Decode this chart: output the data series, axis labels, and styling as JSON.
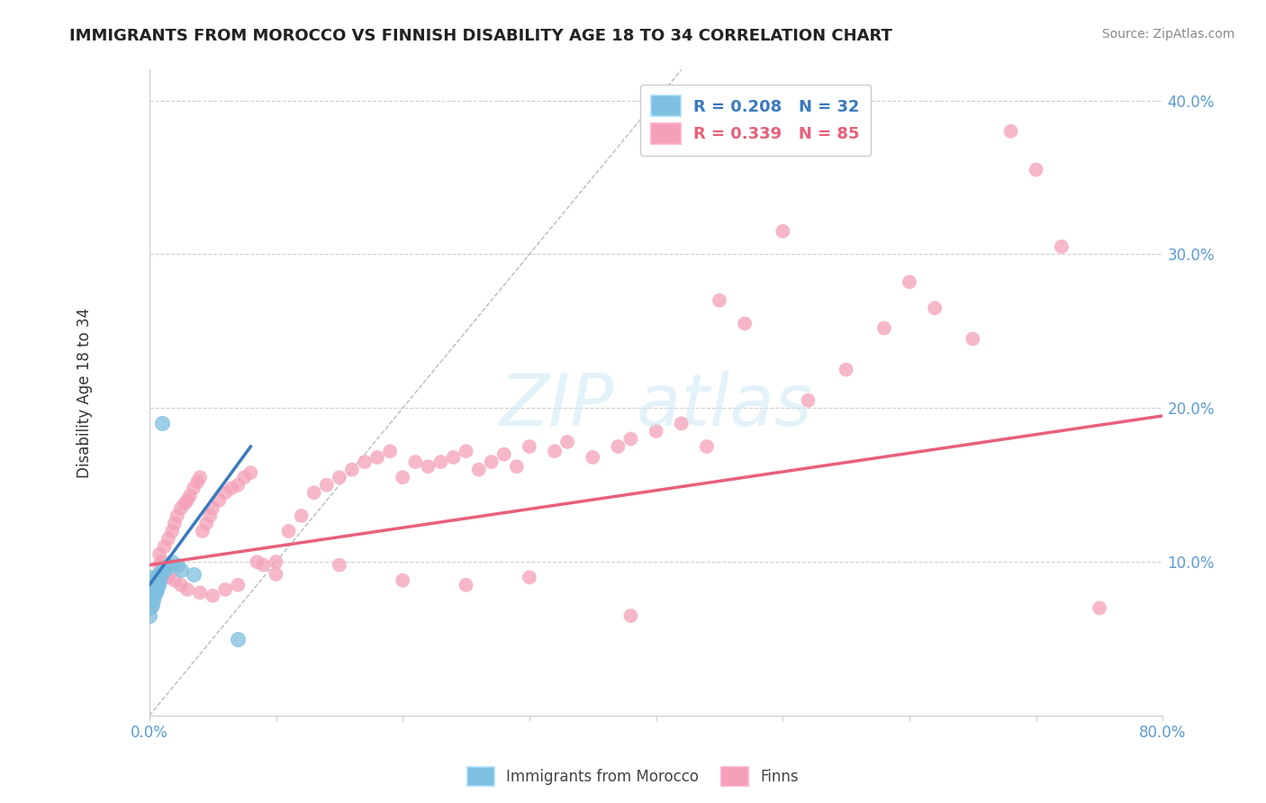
{
  "title": "IMMIGRANTS FROM MOROCCO VS FINNISH DISABILITY AGE 18 TO 34 CORRELATION CHART",
  "source": "Source: ZipAtlas.com",
  "ylabel": "Disability Age 18 to 34",
  "xlim": [
    0.0,
    0.8
  ],
  "ylim": [
    0.0,
    0.42
  ],
  "xticks": [
    0.0,
    0.1,
    0.2,
    0.3,
    0.4,
    0.5,
    0.6,
    0.7,
    0.8
  ],
  "yticks": [
    0.0,
    0.1,
    0.2,
    0.3,
    0.4
  ],
  "xticklabels_ends": [
    "0.0%",
    "80.0%"
  ],
  "yticklabels": [
    "10.0%",
    "20.0%",
    "30.0%",
    "40.0%"
  ],
  "legend_blue_label": "R = 0.208   N = 32",
  "legend_pink_label": "R = 0.339   N = 85",
  "legend_bottom_blue": "Immigrants from Morocco",
  "legend_bottom_pink": "Finns",
  "blue_color": "#7fbfdf",
  "pink_color": "#f4a0b8",
  "blue_line_color": "#3a7abf",
  "pink_line_color": "#e8607a",
  "tick_label_color": "#5b9bd5",
  "blue_line_x": [
    0.0,
    0.08
  ],
  "blue_line_y": [
    0.085,
    0.175
  ],
  "pink_line_x": [
    0.0,
    0.8
  ],
  "pink_line_y": [
    0.098,
    0.195
  ],
  "diag_line_x": [
    0.0,
    0.42
  ],
  "diag_line_y": [
    0.0,
    0.42
  ],
  "blue_x": [
    0.0,
    0.0,
    0.0,
    0.0,
    0.001,
    0.001,
    0.001,
    0.001,
    0.002,
    0.002,
    0.002,
    0.003,
    0.003,
    0.004,
    0.004,
    0.005,
    0.005,
    0.006,
    0.006,
    0.007,
    0.007,
    0.008,
    0.009,
    0.01,
    0.01,
    0.012,
    0.015,
    0.018,
    0.022,
    0.025,
    0.035,
    0.07
  ],
  "blue_y": [
    0.065,
    0.072,
    0.08,
    0.088,
    0.07,
    0.076,
    0.083,
    0.09,
    0.072,
    0.079,
    0.086,
    0.075,
    0.082,
    0.078,
    0.085,
    0.08,
    0.087,
    0.082,
    0.09,
    0.085,
    0.092,
    0.088,
    0.09,
    0.094,
    0.19,
    0.095,
    0.098,
    0.1,
    0.098,
    0.095,
    0.092,
    0.05
  ],
  "pink_x": [
    0.005,
    0.008,
    0.01,
    0.012,
    0.015,
    0.018,
    0.02,
    0.022,
    0.025,
    0.028,
    0.03,
    0.032,
    0.035,
    0.038,
    0.04,
    0.042,
    0.045,
    0.048,
    0.05,
    0.055,
    0.06,
    0.065,
    0.07,
    0.075,
    0.08,
    0.085,
    0.09,
    0.1,
    0.11,
    0.12,
    0.13,
    0.14,
    0.15,
    0.16,
    0.17,
    0.18,
    0.19,
    0.2,
    0.21,
    0.22,
    0.23,
    0.24,
    0.25,
    0.26,
    0.27,
    0.28,
    0.29,
    0.3,
    0.32,
    0.33,
    0.35,
    0.37,
    0.38,
    0.4,
    0.42,
    0.44,
    0.45,
    0.47,
    0.5,
    0.52,
    0.55,
    0.58,
    0.6,
    0.62,
    0.65,
    0.68,
    0.7,
    0.72,
    0.008,
    0.01,
    0.015,
    0.02,
    0.025,
    0.03,
    0.04,
    0.05,
    0.06,
    0.07,
    0.1,
    0.15,
    0.2,
    0.25,
    0.3,
    0.38,
    0.75
  ],
  "pink_y": [
    0.09,
    0.098,
    0.1,
    0.11,
    0.115,
    0.12,
    0.125,
    0.13,
    0.135,
    0.138,
    0.14,
    0.143,
    0.148,
    0.152,
    0.155,
    0.12,
    0.125,
    0.13,
    0.135,
    0.14,
    0.145,
    0.148,
    0.15,
    0.155,
    0.158,
    0.1,
    0.098,
    0.1,
    0.12,
    0.13,
    0.145,
    0.15,
    0.155,
    0.16,
    0.165,
    0.168,
    0.172,
    0.155,
    0.165,
    0.162,
    0.165,
    0.168,
    0.172,
    0.16,
    0.165,
    0.17,
    0.162,
    0.175,
    0.172,
    0.178,
    0.168,
    0.175,
    0.18,
    0.185,
    0.19,
    0.175,
    0.27,
    0.255,
    0.315,
    0.205,
    0.225,
    0.252,
    0.282,
    0.265,
    0.245,
    0.38,
    0.355,
    0.305,
    0.105,
    0.095,
    0.09,
    0.088,
    0.085,
    0.082,
    0.08,
    0.078,
    0.082,
    0.085,
    0.092,
    0.098,
    0.088,
    0.085,
    0.09,
    0.065,
    0.07
  ]
}
